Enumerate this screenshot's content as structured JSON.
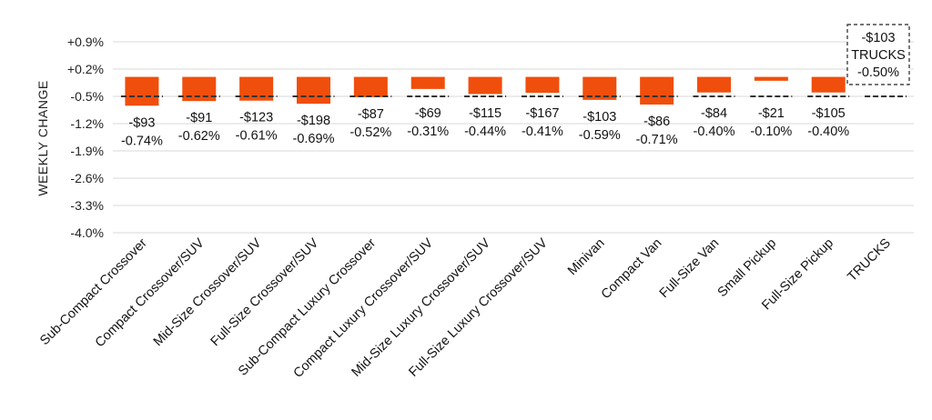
{
  "chart_data": {
    "type": "bar",
    "ylabel": "WEEKLY CHANGE",
    "ylim": [
      -4.0,
      0.9
    ],
    "yticks": [
      "+0.9%",
      "+0.2%",
      "-0.5%",
      "-1.2%",
      "-1.9%",
      "-2.6%",
      "-3.3%",
      "-4.0%"
    ],
    "ytick_values": [
      0.9,
      0.2,
      -0.5,
      -1.2,
      -1.9,
      -2.6,
      -3.3,
      -4.0
    ],
    "grid": true,
    "bar_color": "#f04e0c",
    "reference_value": -0.5,
    "categories": [
      "Sub-Compact Crossover",
      "Compact Crossover/SUV",
      "Mid-Size Crossover/SUV",
      "Full-Size Crossover/SUV",
      "Sub-Compact Luxury Crossover",
      "Compact Luxury Crossover/SUV",
      "Mid-Size Luxury Crossover/SUV",
      "Full-Size Luxury Crossover/SUV",
      "Minivan",
      "Compact Van",
      "Full-Size Van",
      "Small Pickup",
      "Full-Size Pickup",
      "TRUCKS"
    ],
    "values": [
      -0.74,
      -0.62,
      -0.61,
      -0.69,
      -0.52,
      -0.31,
      -0.44,
      -0.41,
      -0.59,
      -0.71,
      -0.4,
      -0.1,
      -0.4,
      -0.5
    ],
    "dollar_labels": [
      "-$93",
      "-$91",
      "-$123",
      "-$198",
      "-$87",
      "-$69",
      "-$115",
      "-$167",
      "-$103",
      "-$86",
      "-$84",
      "-$21",
      "-$105",
      "-$103"
    ],
    "percent_labels": [
      "-0.74%",
      "-0.62%",
      "-0.61%",
      "-0.69%",
      "-0.52%",
      "-0.31%",
      "-0.44%",
      "-0.41%",
      "-0.59%",
      "-0.71%",
      "-0.40%",
      "-0.10%",
      "-0.40%",
      "-0.50%"
    ],
    "callout": {
      "category": "TRUCKS",
      "lines": [
        "-$103",
        "TRUCKS",
        "-0.50%"
      ]
    }
  }
}
